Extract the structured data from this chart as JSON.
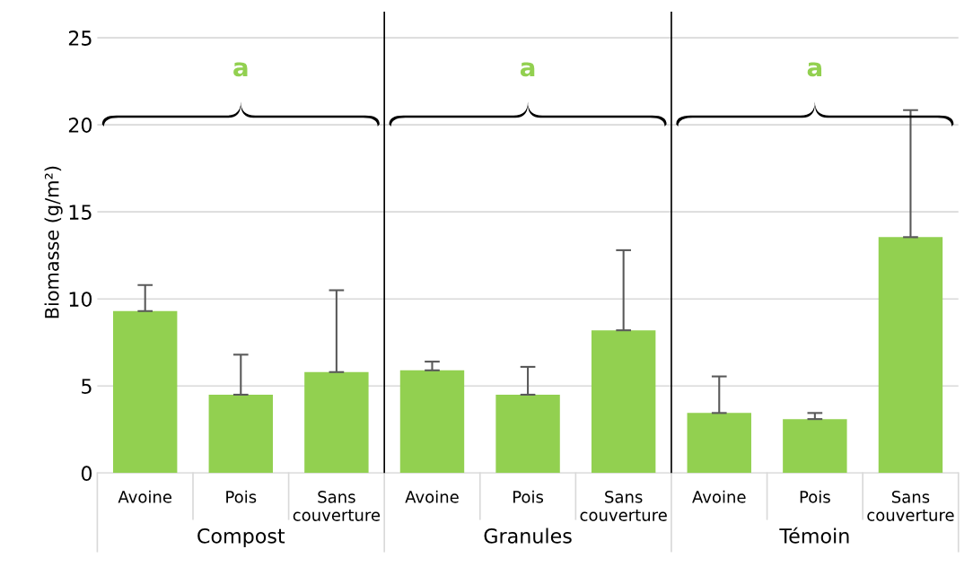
{
  "chart_data": {
    "type": "bar",
    "ylabel": "Biomasse (g/m²)",
    "categories": [
      "Avoine",
      "Pois",
      "Sans\ncouverture",
      "Avoine",
      "Pois",
      "Sans\ncouverture",
      "Avoine",
      "Pois",
      "Sans\ncouverture"
    ],
    "values": [
      9.3,
      4.5,
      5.8,
      5.9,
      4.5,
      8.2,
      3.45,
      3.1,
      13.55
    ],
    "errors": [
      [
        9.3,
        10.8
      ],
      [
        4.5,
        6.8
      ],
      [
        5.8,
        10.5
      ],
      [
        5.9,
        6.4
      ],
      [
        4.5,
        6.1
      ],
      [
        8.2,
        12.8
      ],
      [
        3.45,
        5.55
      ],
      [
        3.1,
        3.45
      ],
      [
        13.55,
        20.85
      ]
    ],
    "color": "#92d050",
    "ylim": [
      0,
      26.5
    ],
    "yticks": [
      0,
      5,
      10,
      15,
      20,
      25
    ],
    "grid": "y",
    "annotations": [
      "a",
      "a",
      "a",
      "Compost",
      "Granules",
      "Témoin"
    ]
  }
}
